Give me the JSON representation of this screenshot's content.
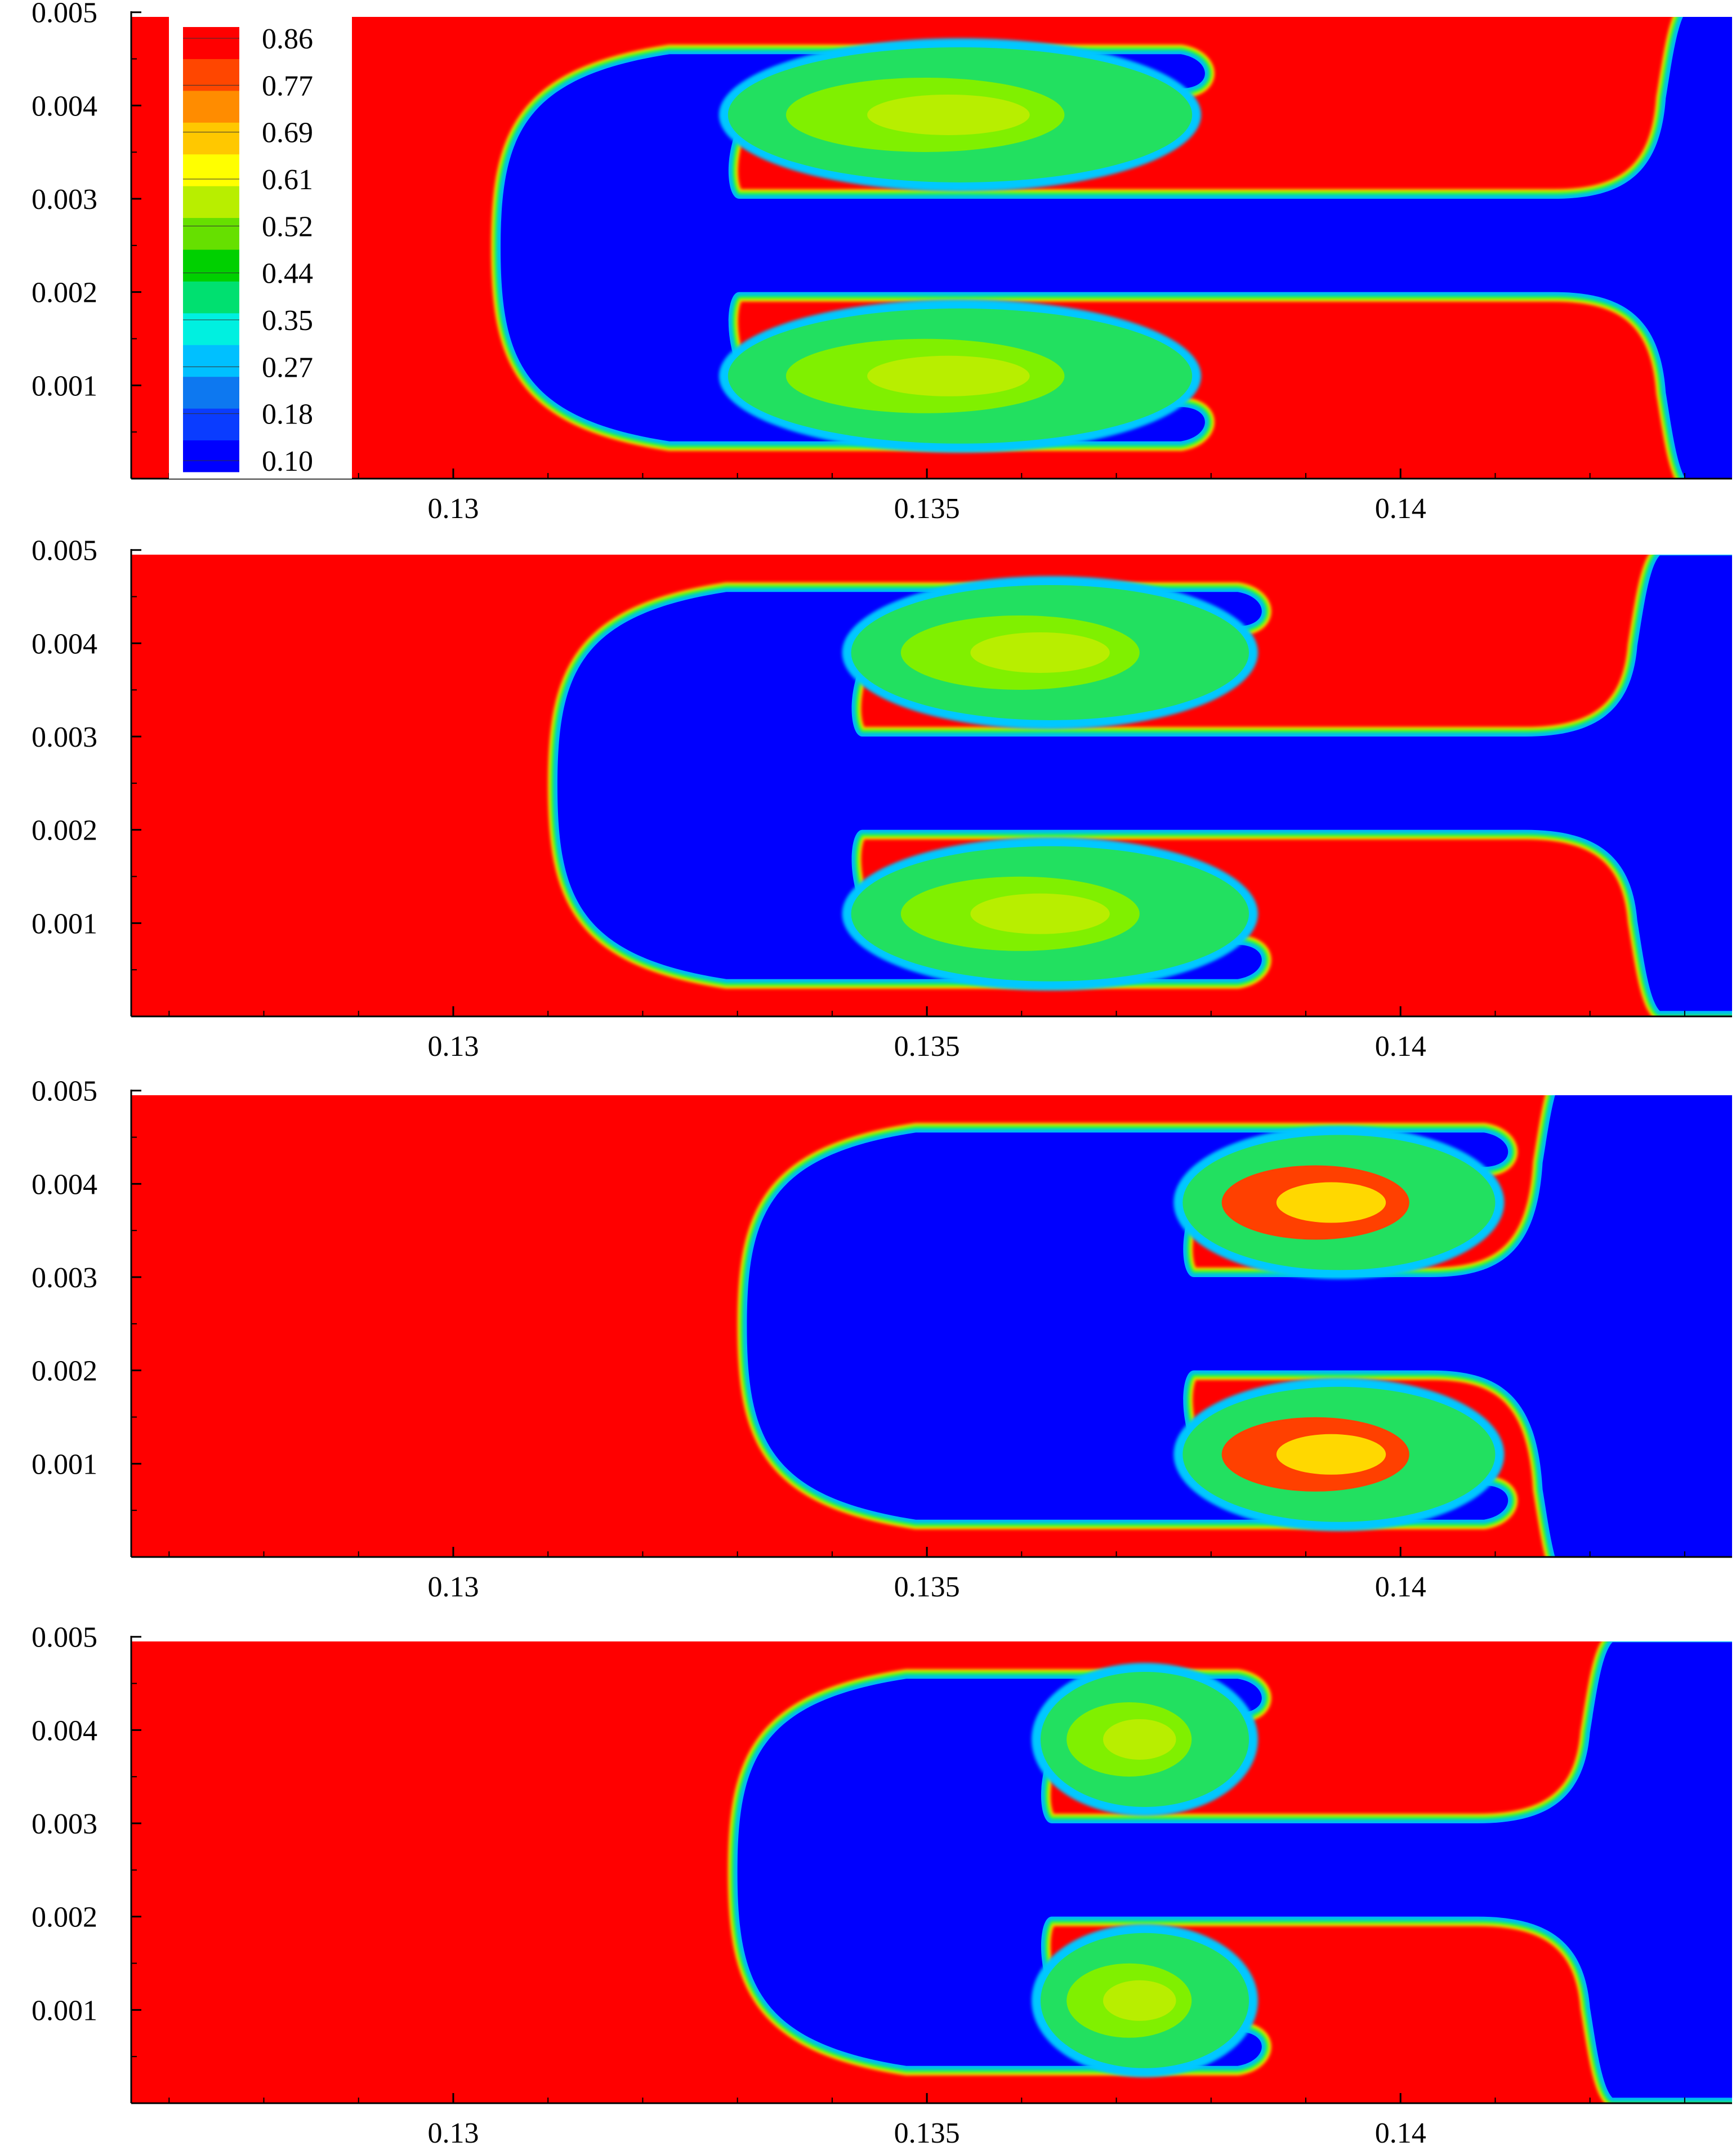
{
  "chart_data": {
    "type": "heatmap",
    "description_free": true,
    "colorscale": {
      "levels": [
        "0.10",
        "0.18",
        "0.27",
        "0.35",
        "0.44",
        "0.52",
        "0.61",
        "0.69",
        "0.77",
        "0.86"
      ],
      "band_colors": [
        "#0000ff",
        "#0a3cff",
        "#0d78f0",
        "#00c0ff",
        "#00f0e0",
        "#00e070",
        "#00d000",
        "#66e000",
        "#b8ee00",
        "#ffff00",
        "#ffc800",
        "#ff8c00",
        "#ff4600",
        "#ff0000"
      ],
      "range": [
        0.1,
        0.86
      ]
    },
    "colors": {
      "high": "#ff0000",
      "low": "#0000ff",
      "interface_mid": "#33ff66"
    },
    "xaxis": {
      "ticks": [
        0.13,
        0.135,
        0.14
      ],
      "tick_labels": [
        "0.13",
        "0.135",
        "0.14"
      ],
      "range": [
        0.1266,
        0.1435
      ]
    },
    "yaxis": {
      "ticks": [
        0.001,
        0.002,
        0.003,
        0.004,
        0.005
      ],
      "tick_labels": [
        "0.001",
        "0.002",
        "0.003",
        "0.004",
        "0.005"
      ],
      "range": [
        0.0,
        0.00495
      ]
    },
    "panels": [
      {
        "id": "a",
        "has_colorbar": true,
        "bubble_nose_x": 0.1305,
        "lobes": [
          {
            "y_center": 0.0039,
            "x_start": 0.1329,
            "x_end": 0.1378,
            "fill_level": 0.5
          },
          {
            "y_center": 0.0011,
            "x_start": 0.1329,
            "x_end": 0.1378,
            "fill_level": 0.5
          }
        ],
        "spike_x_end": 0.1428,
        "spike_y_top": 0.0048,
        "spike_y_bottom": 0.0002
      },
      {
        "id": "b",
        "has_colorbar": false,
        "bubble_nose_x": 0.1311,
        "lobes": [
          {
            "y_center": 0.0039,
            "x_start": 0.1342,
            "x_end": 0.1384,
            "fill_level": 0.55
          },
          {
            "y_center": 0.0011,
            "x_start": 0.1342,
            "x_end": 0.1384,
            "fill_level": 0.55
          }
        ],
        "spike_x_end": 0.1425,
        "spike_y_top": 0.0047,
        "spike_y_bottom": 0.0003
      },
      {
        "id": "c",
        "has_colorbar": false,
        "bubble_nose_x": 0.1331,
        "lobes": [
          {
            "y_center": 0.0038,
            "x_start": 0.1377,
            "x_end": 0.141,
            "fill_level": 0.75
          },
          {
            "y_center": 0.0011,
            "x_start": 0.1377,
            "x_end": 0.141,
            "fill_level": 0.75
          }
        ],
        "spike_x_end": 0.1415,
        "spike_y_top": 0.00495,
        "spike_y_bottom": 0.0
      },
      {
        "id": "d",
        "has_colorbar": false,
        "bubble_nose_x": 0.133,
        "lobes": [
          {
            "y_center": 0.0039,
            "x_start": 0.1362,
            "x_end": 0.1384,
            "fill_level": 0.6
          },
          {
            "y_center": 0.0011,
            "x_start": 0.1362,
            "x_end": 0.1384,
            "fill_level": 0.6
          }
        ],
        "spike_x_end": 0.142,
        "spike_y_top": 0.0047,
        "spike_y_bottom": 0.0003
      }
    ]
  }
}
